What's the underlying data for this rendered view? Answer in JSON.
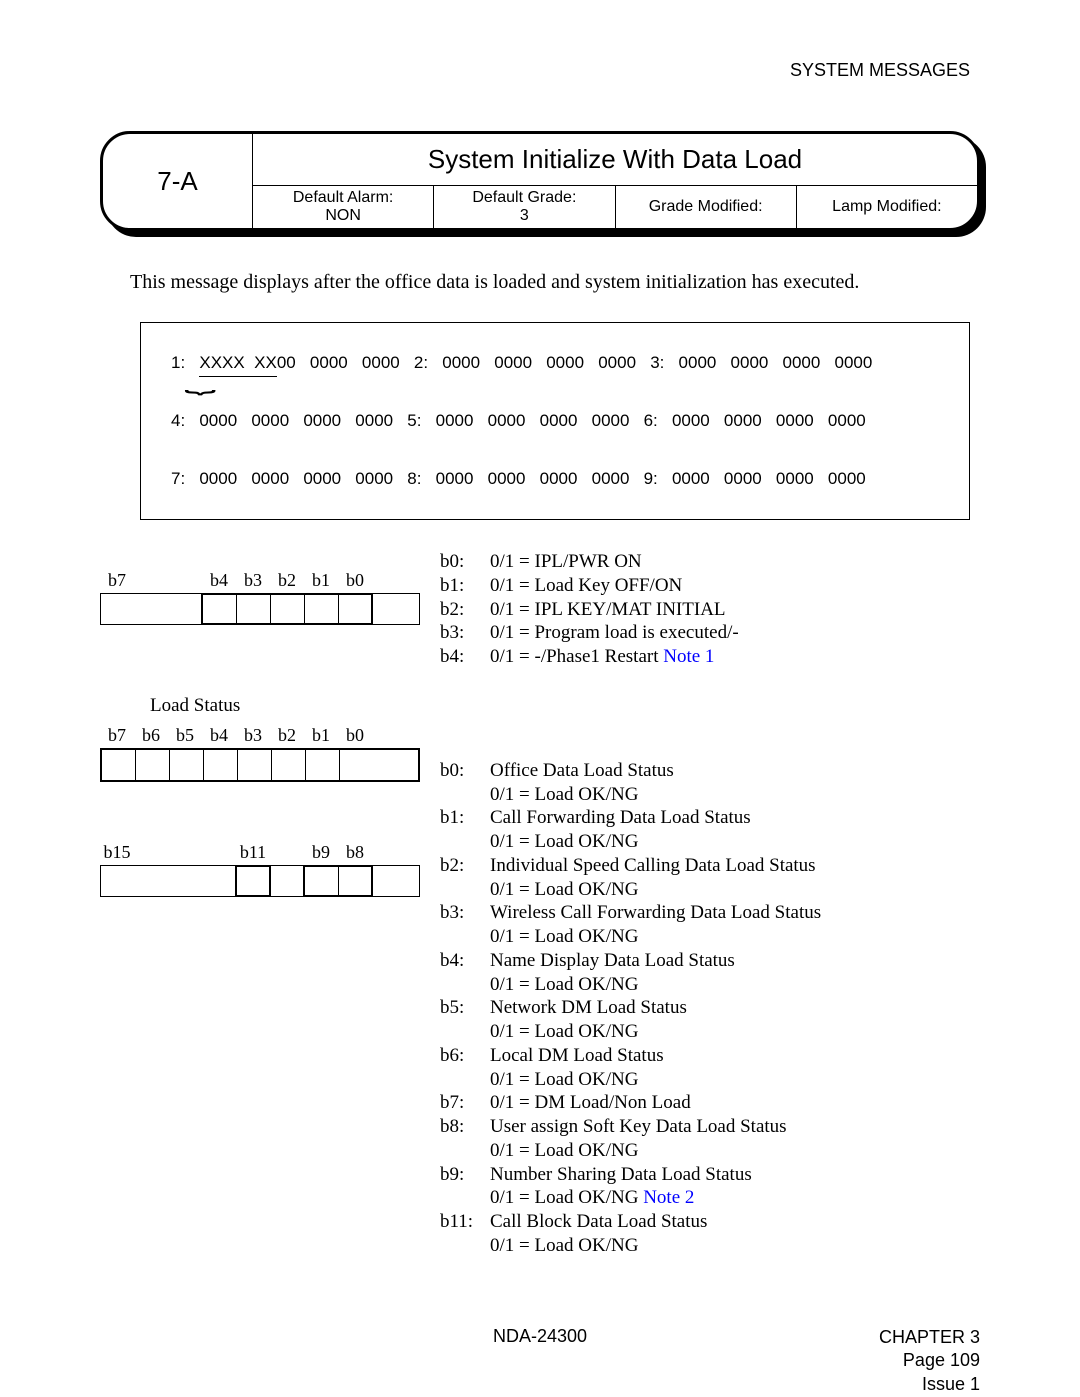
{
  "header": {
    "section": "SYSTEM MESSAGES"
  },
  "title_block": {
    "code": "7-A",
    "title": "System Initialize With Data Load",
    "defs": [
      {
        "label": "Default Alarm:",
        "value": "NON"
      },
      {
        "label": "Default Grade:",
        "value": "3"
      },
      {
        "label": "Grade Modified:",
        "value": ""
      },
      {
        "label": "Lamp Modified:",
        "value": ""
      }
    ]
  },
  "description": "This message displays after the office data is loaded and system initialization has executed.",
  "hex_lines": [
    "1:   XXXX  XX00   0000   0000   2:   0000   0000   0000   0000   3:   0000   0000   0000   0000",
    "4:   0000   0000   0000   0000   5:   0000   0000   0000   0000   6:   0000   0000   0000   0000",
    "7:   0000   0000   0000   0000   8:   0000   0000   0000   0000   9:   0000   0000   0000   0000"
  ],
  "bit_table1": {
    "labels": [
      "b7",
      "",
      "",
      "b4",
      "b3",
      "b2",
      "b1",
      "b0"
    ],
    "defs": [
      {
        "b": "b0:",
        "t": "0/1 = IPL/PWR ON"
      },
      {
        "b": "b1:",
        "t": "0/1 = Load Key OFF/ON"
      },
      {
        "b": "b2:",
        "t": "0/1 = IPL KEY/MAT INITIAL"
      },
      {
        "b": "b3:",
        "t": "0/1 = Program load is executed/-"
      },
      {
        "b": "b4:",
        "t": "0/1 = -/Phase1 Restart ",
        "note": "Note 1"
      }
    ]
  },
  "load_status": {
    "heading": "Load  Status",
    "labels1": [
      "b7",
      "b6",
      "b5",
      "b4",
      "b3",
      "b2",
      "b1",
      "b0"
    ],
    "labels2": [
      "b15",
      "",
      "",
      "",
      "b11",
      "",
      "b9",
      "b8"
    ],
    "defs": [
      {
        "b": "b0:",
        "t": "Office Data Load Status",
        "t2": "0/1 = Load OK/NG"
      },
      {
        "b": "b1:",
        "t": "Call Forwarding Data Load Status",
        "t2": "0/1 = Load OK/NG"
      },
      {
        "b": "b2:",
        "t": "Individual Speed Calling Data Load Status",
        "t2": "0/1 = Load OK/NG"
      },
      {
        "b": "b3:",
        "t": "Wireless Call Forwarding Data Load Status",
        "t2": "0/1 = Load OK/NG"
      },
      {
        "b": "b4:",
        "t": "Name Display Data Load Status",
        "t2": "0/1 = Load OK/NG"
      },
      {
        "b": "b5:",
        "t": "Network DM Load Status",
        "t2": "0/1 = Load OK/NG"
      },
      {
        "b": "b6:",
        "t": "Local DM Load Status",
        "t2": "0/1 = Load OK/NG"
      },
      {
        "b": "b7:",
        "t": "0/1 = DM Load/Non Load"
      },
      {
        "b": "b8:",
        "t": "User assign Soft Key Data Load Status",
        "t2": "0/1 = Load OK/NG"
      },
      {
        "b": "b9:",
        "t": "Number Sharing Data Load Status",
        "t2": "0/1 = Load OK/NG ",
        "note": "Note 2"
      },
      {
        "b": "b11:",
        "t": "Call Block Data Load Status",
        "t2": "0/1 = Load OK/NG"
      }
    ]
  },
  "footer": {
    "doc_id": "NDA-24300",
    "chapter": "CHAPTER 3",
    "page": "Page 109",
    "issue": "Issue 1"
  }
}
